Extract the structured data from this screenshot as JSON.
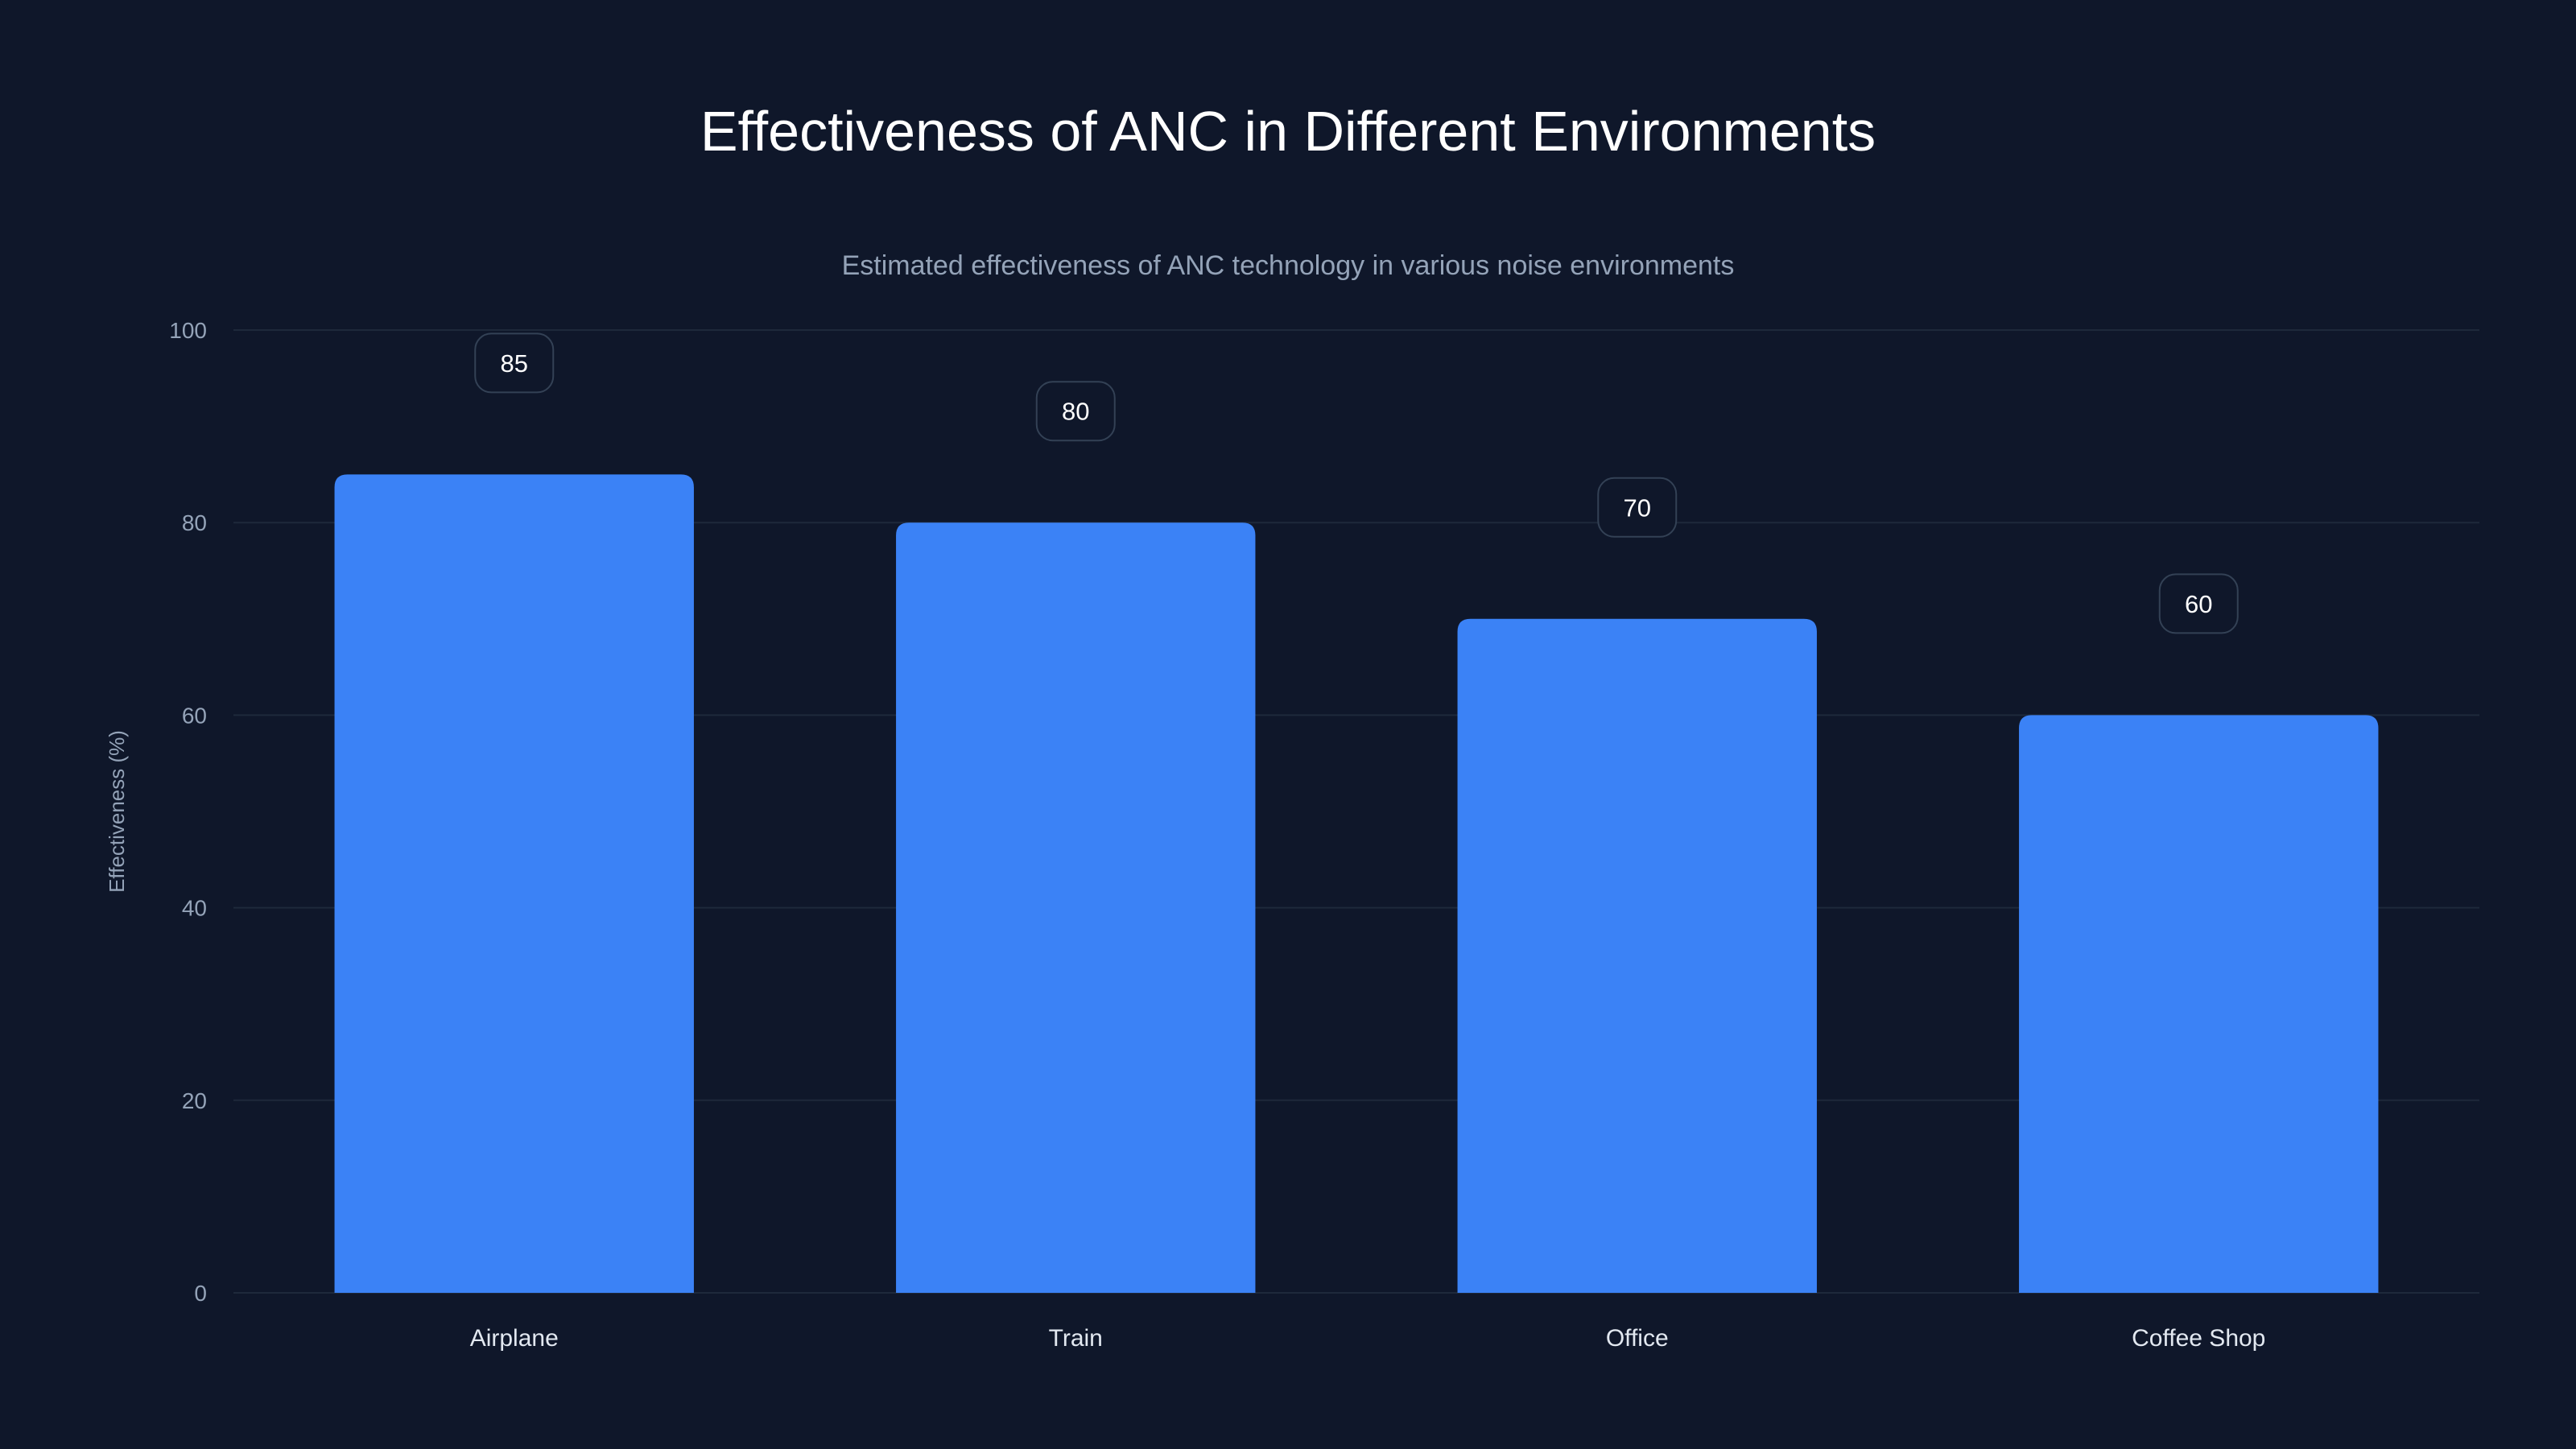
{
  "chart_data": {
    "type": "bar",
    "title": "Effectiveness of ANC in Different Environments",
    "subtitle": "Estimated effectiveness of ANC technology in various noise environments",
    "xlabel": "",
    "ylabel": "Effectiveness (%)",
    "categories": [
      "Airplane",
      "Train",
      "Office",
      "Coffee Shop"
    ],
    "values": [
      85,
      80,
      70,
      60
    ],
    "ylim": [
      0,
      100
    ],
    "yticks": [
      0,
      20,
      40,
      60,
      80,
      100
    ],
    "grid": true,
    "legend": "none",
    "colors": {
      "background": "#0f172a",
      "bar": "#3b82f6",
      "grid": "#1e293b",
      "label_border": "#334155"
    }
  }
}
